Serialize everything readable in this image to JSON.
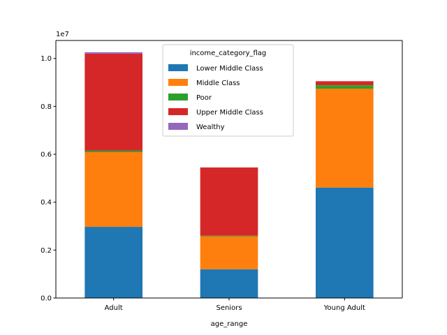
{
  "chart_data": {
    "type": "bar",
    "stacked": true,
    "categories": [
      "Adult",
      "Seniors",
      "Young Adult"
    ],
    "xlabel": "age_range",
    "ylabel": "",
    "scale_label": "1e7",
    "ylim": [
      0,
      10750000
    ],
    "y_ticks": [
      0,
      2000000,
      4000000,
      6000000,
      8000000,
      10000000
    ],
    "y_tick_labels": [
      "0.0",
      "0.2",
      "0.4",
      "0.6",
      "0.8",
      "1.0"
    ],
    "grid": false,
    "legend": {
      "title": "income_category_flag",
      "placement": "top-center"
    },
    "series": [
      {
        "name": "Lower Middle Class",
        "color": "#1f77b4",
        "values": [
          2970000,
          1200000,
          4610000
        ]
      },
      {
        "name": "Middle Class",
        "color": "#ff7f0e",
        "values": [
          3120000,
          1370000,
          4130000
        ]
      },
      {
        "name": "Poor",
        "color": "#2ca02c",
        "values": [
          60000,
          30000,
          140000
        ]
      },
      {
        "name": "Upper Middle Class",
        "color": "#d62728",
        "values": [
          4050000,
          2850000,
          170000
        ]
      },
      {
        "name": "Wealthy",
        "color": "#9467bd",
        "values": [
          60000,
          0,
          0
        ]
      }
    ]
  }
}
